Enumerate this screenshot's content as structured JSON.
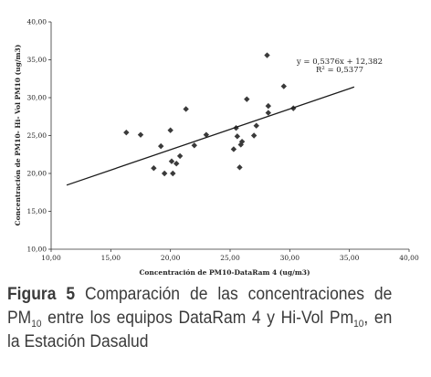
{
  "chart_data": {
    "type": "scatter",
    "title": "",
    "xlabel": "Concentración de PM10-DataRam 4 (ug/m3)",
    "ylabel": "Concentración de PM10- Hi- Vol PM10 (ug/m3)",
    "xlim": [
      10,
      40
    ],
    "ylim": [
      10,
      40
    ],
    "x_ticks": [
      "10,00",
      "15,00",
      "20,00",
      "25,00",
      "30,00",
      "35,00",
      "40,00"
    ],
    "y_ticks": [
      "10,00",
      "15,00",
      "20,00",
      "25,00",
      "30,00",
      "35,00",
      "40,00"
    ],
    "grid": false,
    "points": [
      {
        "x": 16.3,
        "y": 25.4
      },
      {
        "x": 17.5,
        "y": 25.1
      },
      {
        "x": 18.6,
        "y": 20.7
      },
      {
        "x": 19.2,
        "y": 23.6
      },
      {
        "x": 19.5,
        "y": 20.0
      },
      {
        "x": 20.0,
        "y": 25.7
      },
      {
        "x": 20.1,
        "y": 21.6
      },
      {
        "x": 20.2,
        "y": 20.0
      },
      {
        "x": 20.5,
        "y": 21.3
      },
      {
        "x": 20.8,
        "y": 22.3
      },
      {
        "x": 21.3,
        "y": 28.5
      },
      {
        "x": 22.0,
        "y": 23.7
      },
      {
        "x": 23.0,
        "y": 25.1
      },
      {
        "x": 25.3,
        "y": 23.2
      },
      {
        "x": 25.5,
        "y": 26.0
      },
      {
        "x": 25.6,
        "y": 24.9
      },
      {
        "x": 25.8,
        "y": 20.8
      },
      {
        "x": 25.9,
        "y": 23.8
      },
      {
        "x": 26.0,
        "y": 24.2
      },
      {
        "x": 26.4,
        "y": 29.8
      },
      {
        "x": 27.0,
        "y": 25.0
      },
      {
        "x": 27.2,
        "y": 26.3
      },
      {
        "x": 28.1,
        "y": 35.6
      },
      {
        "x": 28.2,
        "y": 28.0
      },
      {
        "x": 28.2,
        "y": 28.9
      },
      {
        "x": 29.5,
        "y": 31.5
      },
      {
        "x": 30.3,
        "y": 28.6
      }
    ],
    "trendline": {
      "slope": 0.5376,
      "intercept": 12.382,
      "x_range": [
        11.3,
        35.4
      ]
    },
    "annotation_equation": "y = 0,5376x + 12,382",
    "annotation_r2": "R² = 0,5377"
  },
  "caption": {
    "figure_label": "Figura 5",
    "text_part1": " Comparación de las concentraciones de PM",
    "sub1": "10",
    "text_part2": " entre los equipos DataRam 4 y Hi-Vol Pm",
    "sub2": "10",
    "text_part3": ", en la Estación Dasalud"
  }
}
